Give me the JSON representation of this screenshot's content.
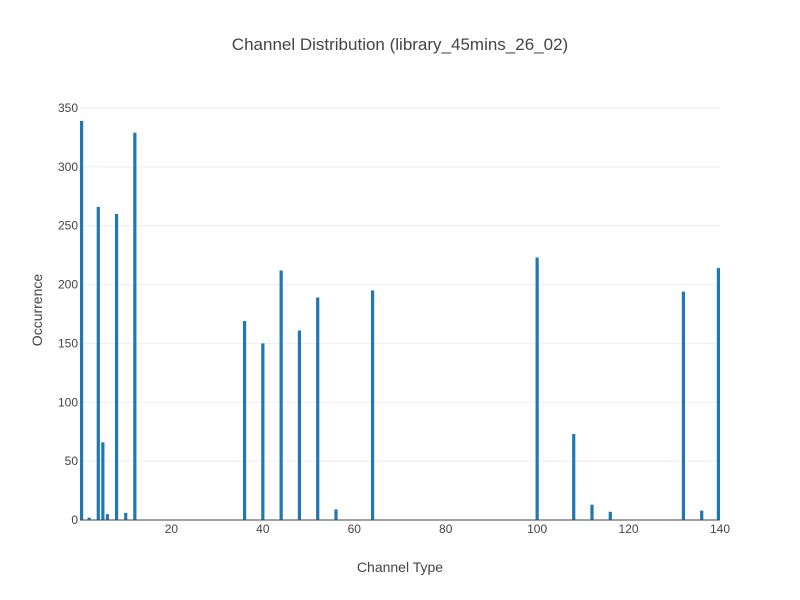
{
  "chart_data": {
    "type": "bar",
    "title": "Channel Distribution (library_45mins_26_02)",
    "xlabel": "Channel Type",
    "ylabel": "Occurrence",
    "xlim": [
      0,
      140
    ],
    "ylim": [
      0,
      350
    ],
    "x_ticks": [
      20,
      40,
      60,
      80,
      100,
      120,
      140
    ],
    "y_ticks": [
      0,
      50,
      100,
      150,
      200,
      250,
      300,
      350
    ],
    "grid": true,
    "bar_color": "#1f77b4",
    "x": [
      0,
      2,
      4,
      5,
      6,
      8,
      10,
      12,
      36,
      40,
      44,
      48,
      52,
      56,
      64,
      100,
      108,
      112,
      116,
      132,
      136,
      140
    ],
    "values": [
      339,
      2,
      266,
      66,
      5,
      260,
      6,
      329,
      169,
      150,
      212,
      161,
      189,
      9,
      195,
      223,
      73,
      13,
      7,
      194,
      8,
      214
    ]
  }
}
